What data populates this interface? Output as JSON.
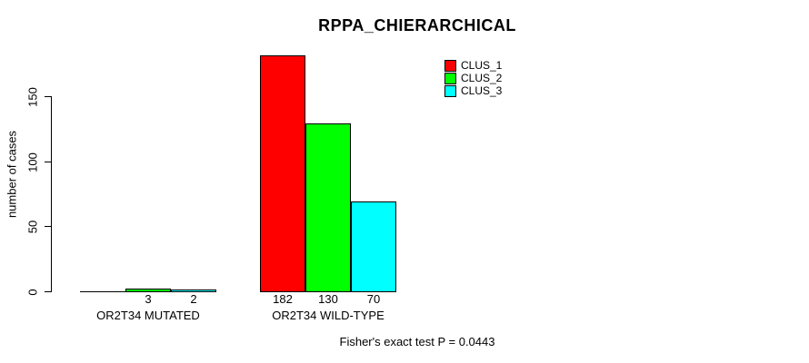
{
  "chart_data": {
    "type": "bar",
    "title": "RPPA_CHIERARCHICAL",
    "ylabel": "number of cases",
    "xlabel": "",
    "categories": [
      "OR2T34 MUTATED",
      "OR2T34 WILD-TYPE"
    ],
    "series": [
      {
        "name": "CLUS_1",
        "color": "#ff0000",
        "values": [
          0,
          182
        ]
      },
      {
        "name": "CLUS_2",
        "color": "#00ff00",
        "values": [
          3,
          130
        ]
      },
      {
        "name": "CLUS_3",
        "color": "#00ffff",
        "values": [
          2,
          70
        ]
      }
    ],
    "bar_value_labels": [
      [
        "",
        "3",
        "2"
      ],
      [
        "182",
        "130",
        "70"
      ]
    ],
    "yticks": [
      "0",
      "50",
      "100",
      "150"
    ],
    "ytick_values": [
      0,
      50,
      100,
      150
    ],
    "axis_range": [
      0,
      150
    ],
    "grid": false,
    "legend_position": "top-right",
    "legend_entries": [
      "CLUS_1",
      "CLUS_2",
      "CLUS_3"
    ],
    "annotation": "Fisher's exact test P = 0.0443",
    "colors": {
      "clus_1": "#ff0000",
      "clus_2": "#00ff00",
      "clus_3": "#00ffff",
      "foreground": "#000000",
      "background": "#ffffff"
    }
  }
}
